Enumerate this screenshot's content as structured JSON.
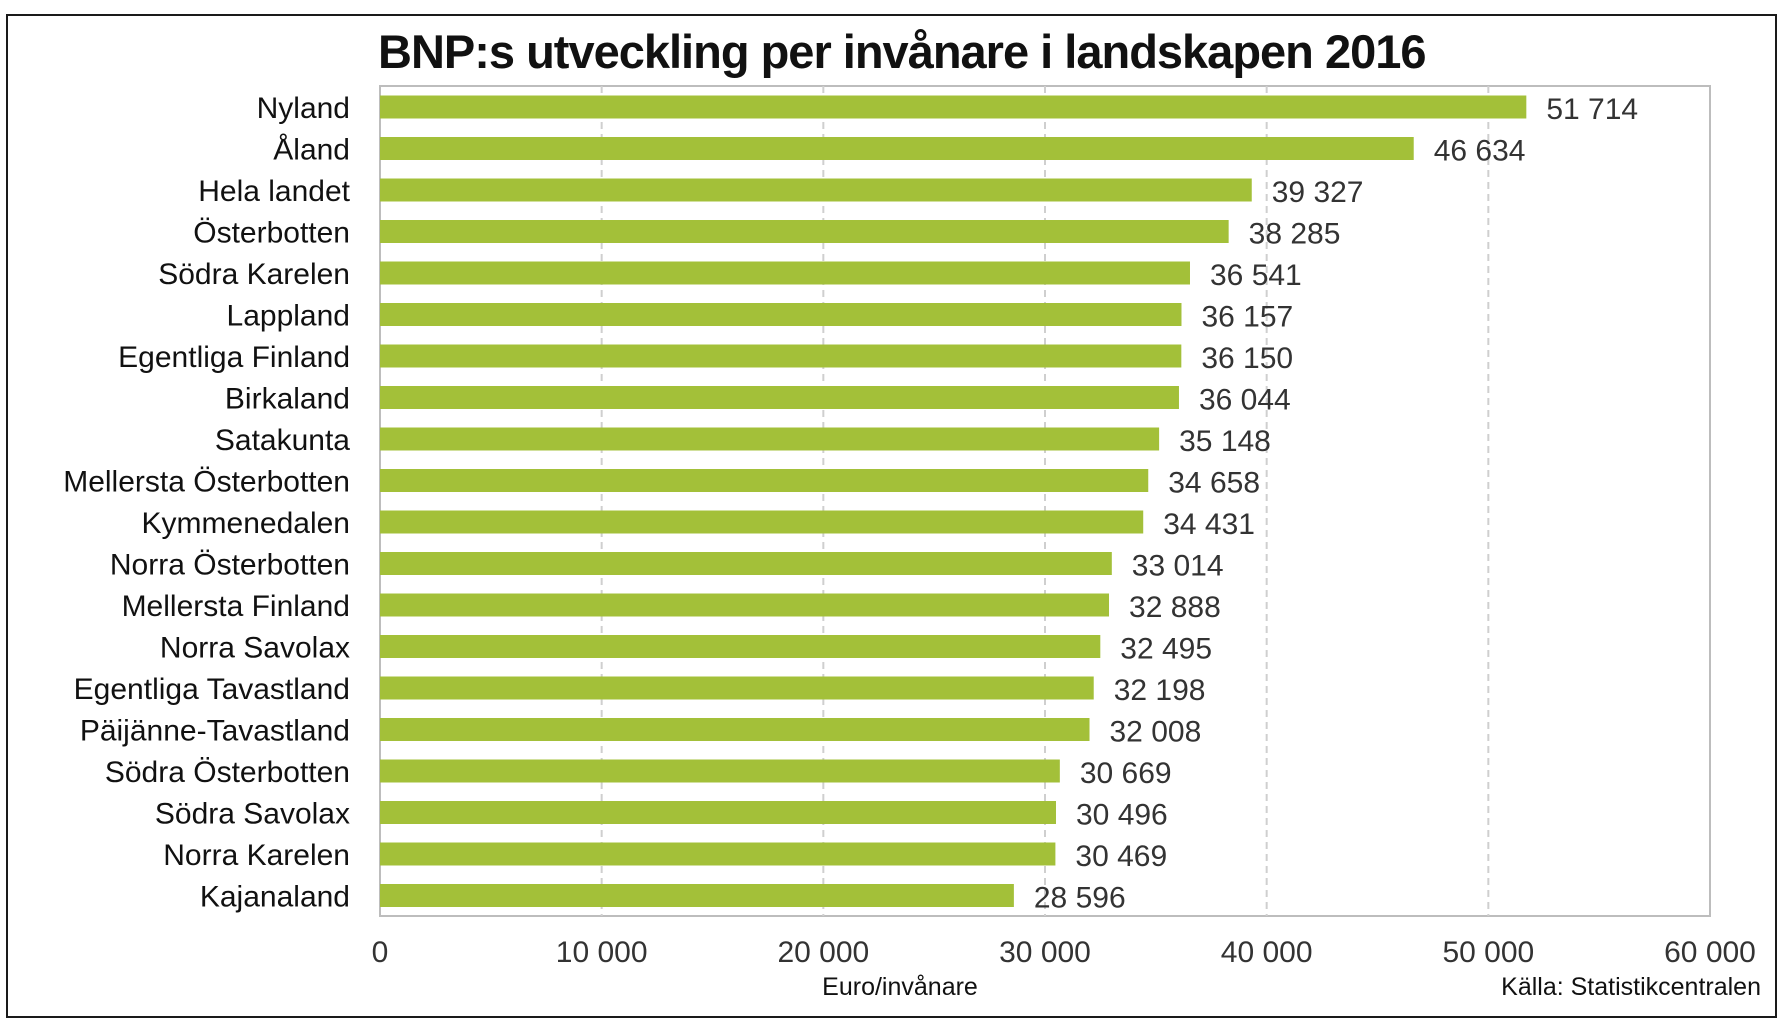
{
  "chart_data": {
    "type": "bar",
    "orientation": "horizontal",
    "title": "BNP:s utveckling per invånare i landskapen 2016",
    "xlabel": "Euro/invånare",
    "source": "Källa: Statistikcentralen",
    "categories": [
      "Nyland",
      "Åland",
      "Hela landet",
      "Österbotten",
      "Södra Karelen",
      "Lappland",
      "Egentliga Finland",
      "Birkaland",
      "Satakunta",
      "Mellersta Österbotten",
      "Kymmenedalen",
      "Norra Österbotten",
      "Mellersta Finland",
      "Norra Savolax",
      "Egentliga Tavastland",
      "Päijänne-Tavastland",
      "Södra Österbotten",
      "Södra Savolax",
      "Norra Karelen",
      "Kajanaland"
    ],
    "values": [
      51714,
      46634,
      39327,
      38285,
      36541,
      36157,
      36150,
      36044,
      35148,
      34658,
      34431,
      33014,
      32888,
      32495,
      32198,
      32008,
      30669,
      30496,
      30469,
      28596
    ],
    "value_labels": [
      "51 714",
      "46 634",
      "39 327",
      "38 285",
      "36 541",
      "36 157",
      "36 150",
      "36 044",
      "35 148",
      "34 658",
      "34 431",
      "33 014",
      "32 888",
      "32 495",
      "32 198",
      "32 008",
      "30 669",
      "30 496",
      "30 469",
      "28 596"
    ],
    "xlim": [
      0,
      60000
    ],
    "xticks": [
      0,
      10000,
      20000,
      30000,
      40000,
      50000,
      60000
    ],
    "xtick_labels": [
      "0",
      "10 000",
      "20 000",
      "30 000",
      "40 000",
      "50 000",
      "60 000"
    ],
    "grid": "vertical dashed",
    "bar_color": "#a3c039",
    "grid_color": "#cfcfcf"
  }
}
